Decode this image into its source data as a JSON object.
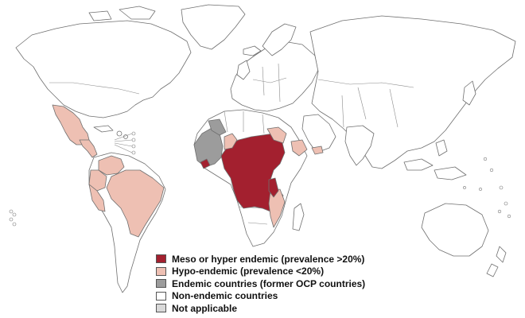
{
  "colors": {
    "meso_hyper": "#a3202f",
    "hypo": "#eec0b3",
    "endemic_ocp": "#9c9c9c",
    "non_endemic": "#ffffff",
    "not_applicable": "#d9d9d9",
    "outline": "#6f6f6f"
  },
  "legend": {
    "items": [
      {
        "label": "Meso or hyper endemic (prevalence >20%)",
        "color": "#a3202f"
      },
      {
        "label": "Hypo-endemic (prevalence <20%)",
        "color": "#eec0b3"
      },
      {
        "label": "Endemic countries (former OCP countries)",
        "color": "#9c9c9c"
      },
      {
        "label": "Non-endemic countries",
        "color": "#ffffff"
      },
      {
        "label": "Not applicable",
        "color": "#d9d9d9"
      }
    ]
  }
}
